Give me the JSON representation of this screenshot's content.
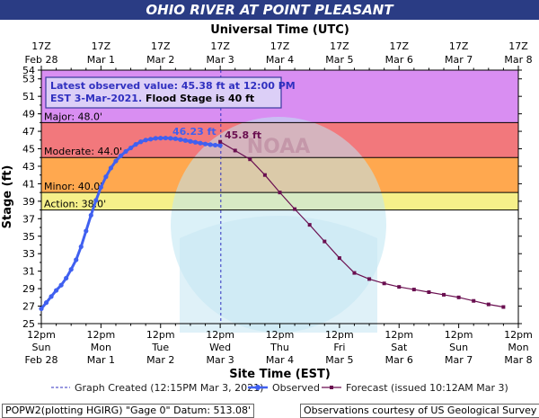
{
  "title": "OHIO RIVER AT POINT PLEASANT",
  "colors": {
    "title_bg": "#2a3c84",
    "major": "#d98ef2",
    "moderate": "#f2787c",
    "minor": "#ffa84f",
    "action": "#f6f08a",
    "normal": "#ffffff",
    "observed": "#4060f0",
    "forecast": "#6a0f50",
    "now_line": "#3030c0",
    "annotation_text": "#3030c0",
    "legend_text": "#1a1a1a"
  },
  "chart_data": {
    "type": "line",
    "title": "OHIO RIVER AT POINT PLEASANT",
    "xlabel": "Site Time (EST)",
    "x2label": "Universal Time (UTC)",
    "ylabel": "Stage (ft)",
    "ylim": [
      25,
      54
    ],
    "yticks": [
      25,
      27,
      29,
      31,
      33,
      35,
      37,
      39,
      41,
      43,
      45,
      47,
      49,
      51,
      53,
      54
    ],
    "xlim": [
      "2021-02-28T12:00",
      "2021-03-08T12:00"
    ],
    "x_ticks_bottom": [
      {
        "time": "12pm",
        "day": "Sun",
        "date": "Feb 28"
      },
      {
        "time": "12pm",
        "day": "Mon",
        "date": "Mar 1"
      },
      {
        "time": "12pm",
        "day": "Tue",
        "date": "Mar 2"
      },
      {
        "time": "12pm",
        "day": "Wed",
        "date": "Mar 3"
      },
      {
        "time": "12pm",
        "day": "Thu",
        "date": "Mar 4"
      },
      {
        "time": "12pm",
        "day": "Fri",
        "date": "Mar 5"
      },
      {
        "time": "12pm",
        "day": "Sat",
        "date": "Mar 6"
      },
      {
        "time": "12pm",
        "day": "Sun",
        "date": "Mar 7"
      },
      {
        "time": "12pm",
        "day": "Mon",
        "date": "Mar 8"
      }
    ],
    "x_ticks_top": [
      {
        "time": "17Z",
        "date": "Feb 28"
      },
      {
        "time": "17Z",
        "date": "Mar 1"
      },
      {
        "time": "17Z",
        "date": "Mar 2"
      },
      {
        "time": "17Z",
        "date": "Mar 3"
      },
      {
        "time": "17Z",
        "date": "Mar 4"
      },
      {
        "time": "17Z",
        "date": "Mar 5"
      },
      {
        "time": "17Z",
        "date": "Mar 6"
      },
      {
        "time": "17Z",
        "date": "Mar 7"
      },
      {
        "time": "17Z",
        "date": "Mar 8"
      }
    ],
    "flood_categories": [
      {
        "name": "Major",
        "label": "Major: 48.0'",
        "stage": 48.0,
        "top": 54
      },
      {
        "name": "Moderate",
        "label": "Moderate: 44.0'",
        "stage": 44.0,
        "top": 48.0
      },
      {
        "name": "Minor",
        "label": "Minor: 40.0'",
        "stage": 40.0,
        "top": 44.0
      },
      {
        "name": "Action",
        "label": "Action: 38.0'",
        "stage": 38.0,
        "top": 40.0
      }
    ],
    "series": [
      {
        "name": "Observed",
        "x": [
          "2021-02-28T12:00",
          "2021-02-28T14:00",
          "2021-02-28T16:00",
          "2021-02-28T18:00",
          "2021-02-28T20:00",
          "2021-02-28T22:00",
          "2021-03-01T00:00",
          "2021-03-01T02:00",
          "2021-03-01T04:00",
          "2021-03-01T06:00",
          "2021-03-01T08:00",
          "2021-03-01T10:00",
          "2021-03-01T12:00",
          "2021-03-01T14:00",
          "2021-03-01T16:00",
          "2021-03-01T18:00",
          "2021-03-01T20:00",
          "2021-03-01T22:00",
          "2021-03-02T00:00",
          "2021-03-02T02:00",
          "2021-03-02T04:00",
          "2021-03-02T06:00",
          "2021-03-02T08:00",
          "2021-03-02T10:00",
          "2021-03-02T12:00",
          "2021-03-02T14:00",
          "2021-03-02T16:00",
          "2021-03-02T18:00",
          "2021-03-02T20:00",
          "2021-03-02T22:00",
          "2021-03-03T00:00",
          "2021-03-03T02:00",
          "2021-03-03T04:00",
          "2021-03-03T06:00",
          "2021-03-03T08:00",
          "2021-03-03T10:00",
          "2021-03-03T12:00"
        ],
        "y": [
          26.7,
          27.4,
          28.1,
          28.8,
          29.4,
          30.2,
          31.2,
          32.3,
          33.8,
          35.6,
          37.4,
          39.1,
          40.6,
          41.8,
          42.8,
          43.6,
          44.2,
          44.7,
          45.1,
          45.5,
          45.8,
          46.0,
          46.1,
          46.2,
          46.22,
          46.23,
          46.2,
          46.15,
          46.05,
          45.95,
          45.85,
          45.75,
          45.65,
          45.55,
          45.48,
          45.42,
          45.38
        ]
      },
      {
        "name": "Forecast",
        "x": [
          "2021-03-03T12:00",
          "2021-03-03T18:00",
          "2021-03-04T00:00",
          "2021-03-04T06:00",
          "2021-03-04T12:00",
          "2021-03-04T18:00",
          "2021-03-05T00:00",
          "2021-03-05T06:00",
          "2021-03-05T12:00",
          "2021-03-05T18:00",
          "2021-03-06T00:00",
          "2021-03-06T06:00",
          "2021-03-06T12:00",
          "2021-03-06T18:00",
          "2021-03-07T00:00",
          "2021-03-07T06:00",
          "2021-03-07T12:00",
          "2021-03-07T18:00",
          "2021-03-08T00:00",
          "2021-03-08T06:00"
        ],
        "y": [
          45.8,
          44.8,
          43.8,
          42.0,
          40.0,
          38.1,
          36.3,
          34.4,
          32.5,
          30.8,
          30.1,
          29.6,
          29.2,
          28.9,
          28.6,
          28.3,
          28.0,
          27.6,
          27.2,
          26.9
        ]
      }
    ],
    "annotations": {
      "observed_crest": "46.23 ft",
      "forecast_crest": "45.8 ft",
      "latest_line1": "Latest observed value: 45.38 ft at 12:00 PM",
      "latest_line2a": "EST 3-Mar-2021.",
      "latest_line2b": " Flood Stage is 40 ft",
      "now": "2021-03-03T12:15"
    },
    "legend": {
      "created": "Graph Created (12:15PM Mar 3, 2021)",
      "observed": "Observed",
      "forecast": "Forecast (issued 10:12AM Mar 3)"
    },
    "grid": false,
    "legend_position": "bottom"
  },
  "footer": {
    "left": "POPW2(plotting HGIRG) \"Gage 0\" Datum:  513.08'",
    "right": "Observations courtesy of US Geological Survey"
  }
}
